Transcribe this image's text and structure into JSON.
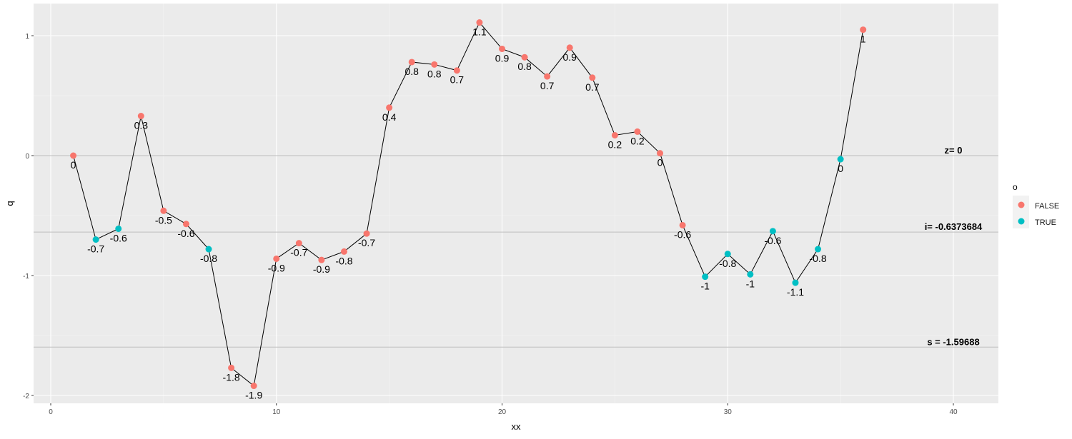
{
  "chart_data": {
    "type": "line",
    "title": "",
    "xlabel": "xx",
    "ylabel": "q",
    "xlim": [
      -0.75,
      42
    ],
    "ylim": [
      -2.05,
      1.26
    ],
    "x_ticks": [
      0,
      10,
      20,
      30,
      40
    ],
    "y_ticks": [
      1,
      0,
      -1,
      -2
    ],
    "grid": true,
    "legend": {
      "title": "o",
      "position": "right",
      "entries": [
        {
          "label": "FALSE",
          "color": "#F8766D"
        },
        {
          "label": "TRUE",
          "color": "#00BFC4"
        }
      ]
    },
    "x": [
      1,
      2,
      3,
      4,
      5,
      6,
      7,
      8,
      9,
      10,
      11,
      12,
      13,
      14,
      15,
      16,
      17,
      18,
      19,
      20,
      21,
      22,
      23,
      24,
      25,
      26,
      27,
      28,
      29,
      30,
      31,
      32,
      33,
      34,
      35,
      36
    ],
    "y": [
      0,
      -0.7,
      -0.61,
      0.33,
      -0.46,
      -0.57,
      -0.78,
      -1.77,
      -1.92,
      -0.86,
      -0.73,
      -0.87,
      -0.8,
      -0.65,
      0.4,
      0.78,
      0.76,
      0.71,
      1.11,
      0.89,
      0.82,
      0.66,
      0.9,
      0.65,
      0.17,
      0.2,
      0.02,
      -0.58,
      -1.01,
      -0.82,
      -0.99,
      -0.63,
      -1.06,
      -0.78,
      -0.03,
      1.05
    ],
    "o": [
      false,
      true,
      true,
      false,
      false,
      false,
      true,
      false,
      false,
      false,
      false,
      false,
      false,
      false,
      false,
      false,
      false,
      false,
      false,
      false,
      false,
      false,
      false,
      false,
      false,
      false,
      false,
      false,
      true,
      true,
      true,
      true,
      true,
      true,
      true,
      false
    ],
    "point_labels": [
      "0",
      "-0.7",
      "-0.6",
      "0.3",
      "-0.5",
      "-0.6",
      "-0.8",
      "-1.8",
      "-1.9",
      "-0.9",
      "-0.7",
      "-0.9",
      "-0.8",
      "-0.7",
      "0.4",
      "0.8",
      "0.8",
      "0.7",
      "1.1",
      "0.9",
      "0.8",
      "0.7",
      "0.9",
      "0.7",
      "0.2",
      "0.2",
      "0",
      "-0.6",
      "-1",
      "-0.8",
      "-1",
      "-0.6",
      "-1.1",
      "-0.8",
      "0",
      "1"
    ],
    "hlines": [
      {
        "y": 0,
        "label": "z= 0",
        "label_x": 40
      },
      {
        "y": -0.6373684,
        "label": "i= -0.6373684",
        "label_x": 40
      },
      {
        "y": -1.59688,
        "label": "s = -1.59688",
        "label_x": 40
      }
    ]
  }
}
